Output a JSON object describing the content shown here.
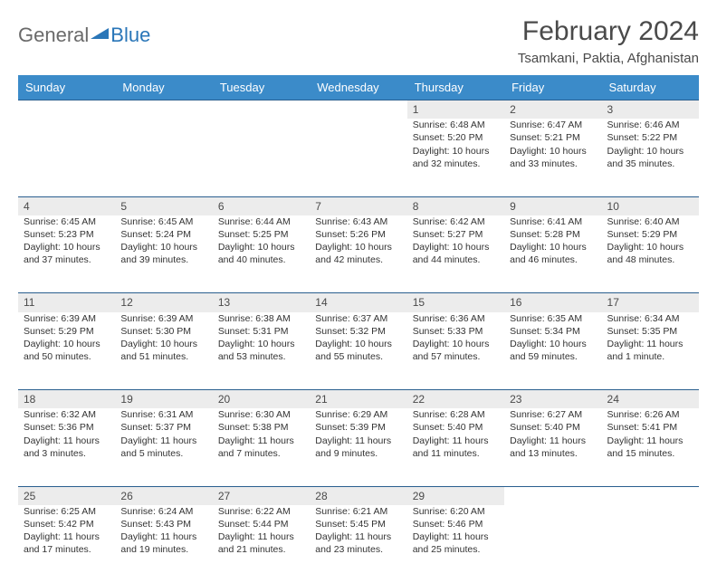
{
  "logo": {
    "general": "General",
    "blue": "Blue"
  },
  "title": "February 2024",
  "location": "Tsamkani, Paktia, Afghanistan",
  "colors": {
    "header_bg": "#3b8bc9",
    "header_text": "#ffffff",
    "daynum_bg": "#ececec",
    "border": "#2a5f8f",
    "logo_gray": "#6a6a6a",
    "logo_blue": "#2a76b8"
  },
  "weekdays": [
    "Sunday",
    "Monday",
    "Tuesday",
    "Wednesday",
    "Thursday",
    "Friday",
    "Saturday"
  ],
  "weeks": [
    {
      "nums": [
        "",
        "",
        "",
        "",
        "1",
        "2",
        "3"
      ],
      "cells": [
        null,
        null,
        null,
        null,
        {
          "sunrise": "Sunrise: 6:48 AM",
          "sunset": "Sunset: 5:20 PM",
          "daylight1": "Daylight: 10 hours",
          "daylight2": "and 32 minutes."
        },
        {
          "sunrise": "Sunrise: 6:47 AM",
          "sunset": "Sunset: 5:21 PM",
          "daylight1": "Daylight: 10 hours",
          "daylight2": "and 33 minutes."
        },
        {
          "sunrise": "Sunrise: 6:46 AM",
          "sunset": "Sunset: 5:22 PM",
          "daylight1": "Daylight: 10 hours",
          "daylight2": "and 35 minutes."
        }
      ]
    },
    {
      "nums": [
        "4",
        "5",
        "6",
        "7",
        "8",
        "9",
        "10"
      ],
      "cells": [
        {
          "sunrise": "Sunrise: 6:45 AM",
          "sunset": "Sunset: 5:23 PM",
          "daylight1": "Daylight: 10 hours",
          "daylight2": "and 37 minutes."
        },
        {
          "sunrise": "Sunrise: 6:45 AM",
          "sunset": "Sunset: 5:24 PM",
          "daylight1": "Daylight: 10 hours",
          "daylight2": "and 39 minutes."
        },
        {
          "sunrise": "Sunrise: 6:44 AM",
          "sunset": "Sunset: 5:25 PM",
          "daylight1": "Daylight: 10 hours",
          "daylight2": "and 40 minutes."
        },
        {
          "sunrise": "Sunrise: 6:43 AM",
          "sunset": "Sunset: 5:26 PM",
          "daylight1": "Daylight: 10 hours",
          "daylight2": "and 42 minutes."
        },
        {
          "sunrise": "Sunrise: 6:42 AM",
          "sunset": "Sunset: 5:27 PM",
          "daylight1": "Daylight: 10 hours",
          "daylight2": "and 44 minutes."
        },
        {
          "sunrise": "Sunrise: 6:41 AM",
          "sunset": "Sunset: 5:28 PM",
          "daylight1": "Daylight: 10 hours",
          "daylight2": "and 46 minutes."
        },
        {
          "sunrise": "Sunrise: 6:40 AM",
          "sunset": "Sunset: 5:29 PM",
          "daylight1": "Daylight: 10 hours",
          "daylight2": "and 48 minutes."
        }
      ]
    },
    {
      "nums": [
        "11",
        "12",
        "13",
        "14",
        "15",
        "16",
        "17"
      ],
      "cells": [
        {
          "sunrise": "Sunrise: 6:39 AM",
          "sunset": "Sunset: 5:29 PM",
          "daylight1": "Daylight: 10 hours",
          "daylight2": "and 50 minutes."
        },
        {
          "sunrise": "Sunrise: 6:39 AM",
          "sunset": "Sunset: 5:30 PM",
          "daylight1": "Daylight: 10 hours",
          "daylight2": "and 51 minutes."
        },
        {
          "sunrise": "Sunrise: 6:38 AM",
          "sunset": "Sunset: 5:31 PM",
          "daylight1": "Daylight: 10 hours",
          "daylight2": "and 53 minutes."
        },
        {
          "sunrise": "Sunrise: 6:37 AM",
          "sunset": "Sunset: 5:32 PM",
          "daylight1": "Daylight: 10 hours",
          "daylight2": "and 55 minutes."
        },
        {
          "sunrise": "Sunrise: 6:36 AM",
          "sunset": "Sunset: 5:33 PM",
          "daylight1": "Daylight: 10 hours",
          "daylight2": "and 57 minutes."
        },
        {
          "sunrise": "Sunrise: 6:35 AM",
          "sunset": "Sunset: 5:34 PM",
          "daylight1": "Daylight: 10 hours",
          "daylight2": "and 59 minutes."
        },
        {
          "sunrise": "Sunrise: 6:34 AM",
          "sunset": "Sunset: 5:35 PM",
          "daylight1": "Daylight: 11 hours",
          "daylight2": "and 1 minute."
        }
      ]
    },
    {
      "nums": [
        "18",
        "19",
        "20",
        "21",
        "22",
        "23",
        "24"
      ],
      "cells": [
        {
          "sunrise": "Sunrise: 6:32 AM",
          "sunset": "Sunset: 5:36 PM",
          "daylight1": "Daylight: 11 hours",
          "daylight2": "and 3 minutes."
        },
        {
          "sunrise": "Sunrise: 6:31 AM",
          "sunset": "Sunset: 5:37 PM",
          "daylight1": "Daylight: 11 hours",
          "daylight2": "and 5 minutes."
        },
        {
          "sunrise": "Sunrise: 6:30 AM",
          "sunset": "Sunset: 5:38 PM",
          "daylight1": "Daylight: 11 hours",
          "daylight2": "and 7 minutes."
        },
        {
          "sunrise": "Sunrise: 6:29 AM",
          "sunset": "Sunset: 5:39 PM",
          "daylight1": "Daylight: 11 hours",
          "daylight2": "and 9 minutes."
        },
        {
          "sunrise": "Sunrise: 6:28 AM",
          "sunset": "Sunset: 5:40 PM",
          "daylight1": "Daylight: 11 hours",
          "daylight2": "and 11 minutes."
        },
        {
          "sunrise": "Sunrise: 6:27 AM",
          "sunset": "Sunset: 5:40 PM",
          "daylight1": "Daylight: 11 hours",
          "daylight2": "and 13 minutes."
        },
        {
          "sunrise": "Sunrise: 6:26 AM",
          "sunset": "Sunset: 5:41 PM",
          "daylight1": "Daylight: 11 hours",
          "daylight2": "and 15 minutes."
        }
      ]
    },
    {
      "nums": [
        "25",
        "26",
        "27",
        "28",
        "29",
        "",
        ""
      ],
      "cells": [
        {
          "sunrise": "Sunrise: 6:25 AM",
          "sunset": "Sunset: 5:42 PM",
          "daylight1": "Daylight: 11 hours",
          "daylight2": "and 17 minutes."
        },
        {
          "sunrise": "Sunrise: 6:24 AM",
          "sunset": "Sunset: 5:43 PM",
          "daylight1": "Daylight: 11 hours",
          "daylight2": "and 19 minutes."
        },
        {
          "sunrise": "Sunrise: 6:22 AM",
          "sunset": "Sunset: 5:44 PM",
          "daylight1": "Daylight: 11 hours",
          "daylight2": "and 21 minutes."
        },
        {
          "sunrise": "Sunrise: 6:21 AM",
          "sunset": "Sunset: 5:45 PM",
          "daylight1": "Daylight: 11 hours",
          "daylight2": "and 23 minutes."
        },
        {
          "sunrise": "Sunrise: 6:20 AM",
          "sunset": "Sunset: 5:46 PM",
          "daylight1": "Daylight: 11 hours",
          "daylight2": "and 25 minutes."
        },
        null,
        null
      ]
    }
  ]
}
